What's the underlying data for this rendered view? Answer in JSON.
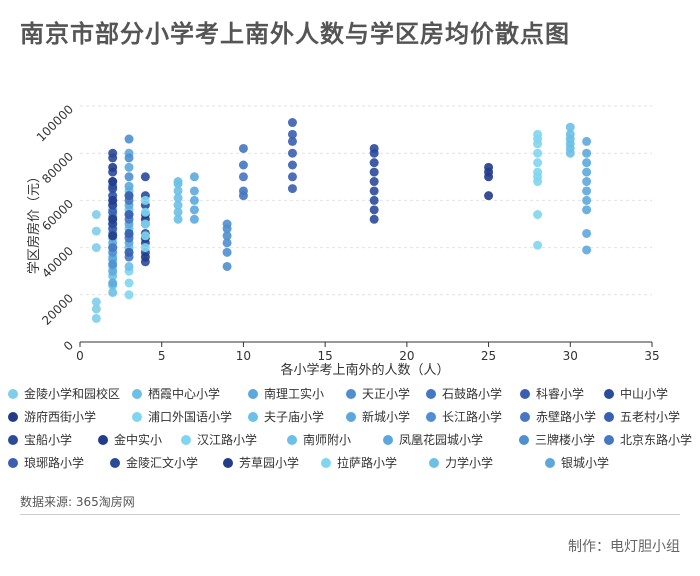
{
  "page": {
    "title": "南京市部分小学考上南外人数与学区房均价散点图"
  },
  "footer": {
    "source": "数据来源: 365淘房网",
    "credit": "制作：电灯胆小组"
  },
  "chart_data": {
    "type": "scatter",
    "title": "南京市部分小学考上南外人数与学区房均价散点图",
    "xlabel": "各小学考上南外的人数（人）",
    "ylabel": "学区房房价（元）",
    "xlim": [
      0,
      35
    ],
    "ylim": [
      0,
      100000
    ],
    "x_ticks": [
      "0",
      "5",
      "10",
      "15",
      "20",
      "25",
      "30",
      "35"
    ],
    "y_ticks": [
      "0",
      "20000",
      "40000",
      "60000",
      "80000",
      "100000"
    ],
    "grid": true,
    "legend_position": "bottom",
    "series": [
      {
        "name": "金陵小学和园校区",
        "color": "#7fcdea",
        "x": 1,
        "values": [
          10000,
          14000,
          17000,
          40000,
          47000,
          54000
        ]
      },
      {
        "name": "栖霞中心小学",
        "color": "#6cc0e5",
        "x": 2,
        "values": [
          21000,
          24000,
          28000,
          32000,
          36000,
          40000,
          44000,
          48000
        ]
      },
      {
        "name": "南理工实小",
        "color": "#5ca8dc",
        "x": 2,
        "values": [
          25000,
          30000,
          35000,
          42000,
          50000,
          56000
        ]
      },
      {
        "name": "天正小学",
        "color": "#4f8fd0",
        "x": 2,
        "values": [
          33000,
          38000,
          45000,
          52000,
          58000,
          62000
        ]
      },
      {
        "name": "石鼓路小学",
        "color": "#4577c2",
        "x": 2,
        "values": [
          40000,
          46000,
          53000,
          60000,
          66000
        ]
      },
      {
        "name": "科睿小学",
        "color": "#3a5fb0",
        "x": 2,
        "values": [
          48000,
          55000,
          62000,
          68000
        ]
      },
      {
        "name": "中山小学",
        "color": "#2a4a9a",
        "x": 2,
        "values": [
          50000,
          58000,
          65000,
          72000,
          78000,
          80000
        ]
      },
      {
        "name": "游府西街小学",
        "color": "#233c8a",
        "x": 2,
        "values": [
          45000,
          52000,
          60000,
          68000,
          74000
        ]
      },
      {
        "name": "浦口外国语小学",
        "color": "#7fd6f0",
        "x": 3,
        "values": [
          20000,
          25000,
          30000,
          38000,
          45000
        ]
      },
      {
        "name": "夫子庙小学",
        "color": "#6cc0e5",
        "x": 3,
        "values": [
          32000,
          40000,
          48000,
          56000,
          64000
        ]
      },
      {
        "name": "新城小学",
        "color": "#5ca8dc",
        "x": 3,
        "values": [
          42000,
          50000,
          58000,
          66000,
          74000,
          80000
        ]
      },
      {
        "name": "长江路小学",
        "color": "#4f8fd0",
        "x": 3,
        "values": [
          46000,
          54000,
          62000,
          70000,
          78000,
          86000
        ]
      },
      {
        "name": "赤壁路小学",
        "color": "#4577c2",
        "x": 3,
        "values": [
          36000,
          44000,
          52000,
          60000
        ]
      },
      {
        "name": "五老村小学",
        "color": "#3a5fb0",
        "x": 3,
        "values": [
          38000,
          46000,
          54000,
          62000
        ]
      },
      {
        "name": "宝船小学",
        "color": "#2a4a9a",
        "x": 4,
        "values": [
          34000,
          38000,
          42000,
          46000,
          50000,
          54000,
          58000,
          62000,
          70000
        ]
      },
      {
        "name": "金中实小",
        "color": "#233c8a",
        "x": 4,
        "values": [
          36000,
          44000,
          52000
        ]
      },
      {
        "name": "汉江路小学",
        "color": "#7fd6f0",
        "x": 4,
        "values": [
          40000,
          45000,
          50000,
          55000,
          60000
        ]
      },
      {
        "name": "南师附小",
        "color": "#6cc0e5",
        "x": 6,
        "values": [
          52000,
          55000,
          58000,
          61000,
          64000,
          67000,
          68000
        ]
      },
      {
        "name": "凤凰花园城小学",
        "color": "#5ca8dc",
        "x": 7,
        "values": [
          52000,
          56000,
          60000,
          64000,
          70000
        ]
      },
      {
        "name": "三牌楼小学",
        "color": "#4f8fd0",
        "x": 9,
        "values": [
          32000,
          38000,
          42000,
          45000,
          48000,
          50000
        ]
      },
      {
        "name": "北京东路小学",
        "color": "#4577c2",
        "x": 10,
        "values": [
          62000,
          64000,
          70000,
          75000,
          82000
        ]
      },
      {
        "name": "琅琊路小学",
        "color": "#3a5fb0",
        "x": 13,
        "values": [
          65000,
          70000,
          75000,
          80000,
          85000,
          88000,
          93000
        ]
      },
      {
        "name": "金陵汇文小学",
        "color": "#2a4a9a",
        "x": 18,
        "values": [
          52000,
          56000,
          60000,
          64000,
          68000,
          72000,
          76000,
          80000,
          82000
        ]
      },
      {
        "name": "芳草园小学",
        "color": "#233c8a",
        "x": 25,
        "values": [
          62000,
          70000,
          72000,
          74000
        ]
      },
      {
        "name": "拉萨路小学",
        "color": "#7fd6f0",
        "x": 28,
        "values": [
          41000,
          54000,
          68000,
          70000,
          72000,
          76000,
          80000,
          84000,
          86000,
          88000
        ]
      },
      {
        "name": "力学小学",
        "color": "#6cc0e5",
        "x": 30,
        "values": [
          80000,
          82000,
          84000,
          86000,
          88000,
          91000
        ]
      },
      {
        "name": "银城小学",
        "color": "#5ca8dc",
        "x": 31,
        "values": [
          39000,
          46000,
          56000,
          60000,
          64000,
          68000,
          72000,
          76000,
          80000,
          85000
        ]
      }
    ]
  }
}
